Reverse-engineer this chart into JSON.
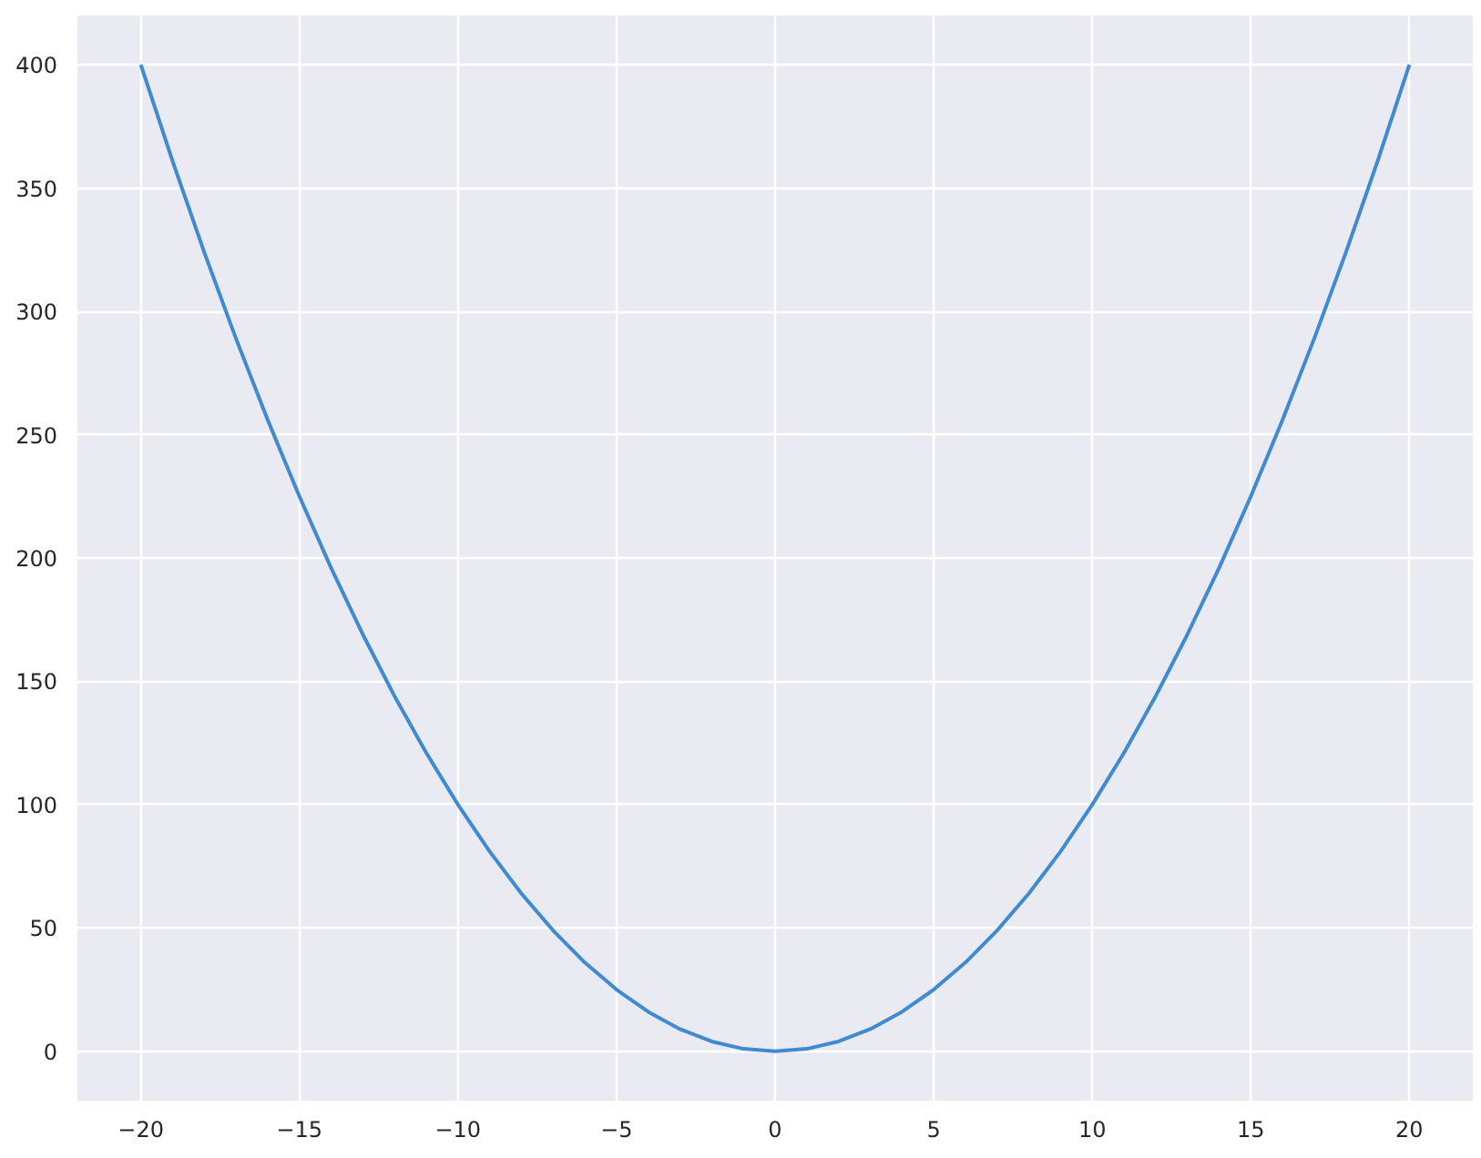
{
  "chart_data": {
    "type": "line",
    "x": [
      -20,
      -19,
      -18,
      -17,
      -16,
      -15,
      -14,
      -13,
      -12,
      -11,
      -10,
      -9,
      -8,
      -7,
      -6,
      -5,
      -4,
      -3,
      -2,
      -1,
      0,
      1,
      2,
      3,
      4,
      5,
      6,
      7,
      8,
      9,
      10,
      11,
      12,
      13,
      14,
      15,
      16,
      17,
      18,
      19,
      20
    ],
    "series": [
      {
        "color": "#3f8ad0",
        "values": [
          400,
          361,
          324,
          289,
          256,
          225,
          196,
          169,
          144,
          121,
          100,
          81,
          64,
          49,
          36,
          25,
          16,
          9,
          4,
          1,
          0,
          1,
          4,
          9,
          16,
          25,
          36,
          49,
          64,
          81,
          100,
          121,
          144,
          169,
          196,
          225,
          256,
          289,
          324,
          361,
          400
        ]
      }
    ],
    "xlim": [
      -22,
      22
    ],
    "ylim": [
      -20,
      420
    ],
    "xticks": [
      {
        "value": -20,
        "label": "−20"
      },
      {
        "value": -15,
        "label": "−15"
      },
      {
        "value": -10,
        "label": "−10"
      },
      {
        "value": -5,
        "label": "−5"
      },
      0,
      5,
      10,
      15,
      20
    ],
    "yticks": [
      0,
      50,
      100,
      150,
      200,
      250,
      300,
      350,
      400
    ],
    "grid": true,
    "marker": "none",
    "line_style": "solid"
  }
}
